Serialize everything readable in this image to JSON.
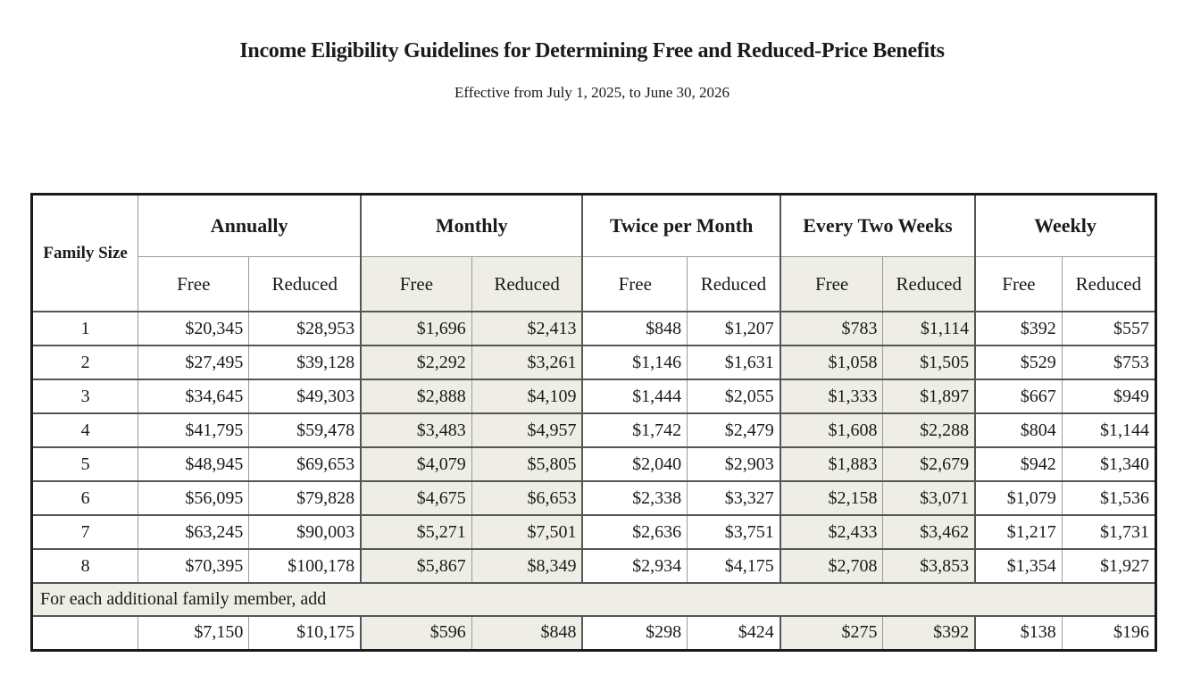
{
  "title": "Income Eligibility Guidelines for Determining Free and Reduced-Price Benefits",
  "subtitle": "Effective from July 1, 2025, to June 30, 2026",
  "table": {
    "family_size_header": "Family Size",
    "groups": [
      "Annually",
      "Monthly",
      "Twice per Month",
      "Every Two Weeks",
      "Weekly"
    ],
    "sub_headers": [
      "Free",
      "Reduced",
      "Free",
      "Reduced",
      "Free",
      "Reduced",
      "Free",
      "Reduced",
      "Free",
      "Reduced"
    ],
    "rows": [
      {
        "size": "1",
        "values": [
          "$20,345",
          "$28,953",
          "$1,696",
          "$2,413",
          "$848",
          "$1,207",
          "$783",
          "$1,114",
          "$392",
          "$557"
        ]
      },
      {
        "size": "2",
        "values": [
          "$27,495",
          "$39,128",
          "$2,292",
          "$3,261",
          "$1,146",
          "$1,631",
          "$1,058",
          "$1,505",
          "$529",
          "$753"
        ]
      },
      {
        "size": "3",
        "values": [
          "$34,645",
          "$49,303",
          "$2,888",
          "$4,109",
          "$1,444",
          "$2,055",
          "$1,333",
          "$1,897",
          "$667",
          "$949"
        ]
      },
      {
        "size": "4",
        "values": [
          "$41,795",
          "$59,478",
          "$3,483",
          "$4,957",
          "$1,742",
          "$2,479",
          "$1,608",
          "$2,288",
          "$804",
          "$1,144"
        ]
      },
      {
        "size": "5",
        "values": [
          "$48,945",
          "$69,653",
          "$4,079",
          "$5,805",
          "$2,040",
          "$2,903",
          "$1,883",
          "$2,679",
          "$942",
          "$1,340"
        ]
      },
      {
        "size": "6",
        "values": [
          "$56,095",
          "$79,828",
          "$4,675",
          "$6,653",
          "$2,338",
          "$3,327",
          "$2,158",
          "$3,071",
          "$1,079",
          "$1,536"
        ]
      },
      {
        "size": "7",
        "values": [
          "$63,245",
          "$90,003",
          "$5,271",
          "$7,501",
          "$2,636",
          "$3,751",
          "$2,433",
          "$3,462",
          "$1,217",
          "$1,731"
        ]
      },
      {
        "size": "8",
        "values": [
          "$70,395",
          "$100,178",
          "$5,867",
          "$8,349",
          "$2,934",
          "$4,175",
          "$2,708",
          "$3,853",
          "$1,354",
          "$1,927"
        ]
      }
    ],
    "additional_note": "For each additional family member, add",
    "additional_values": [
      "$7,150",
      "$10,175",
      "$596",
      "$848",
      "$298",
      "$424",
      "$275",
      "$392",
      "$138",
      "$196"
    ]
  },
  "colors": {
    "shade": "#efeee6",
    "border": "#1a1a1a"
  }
}
